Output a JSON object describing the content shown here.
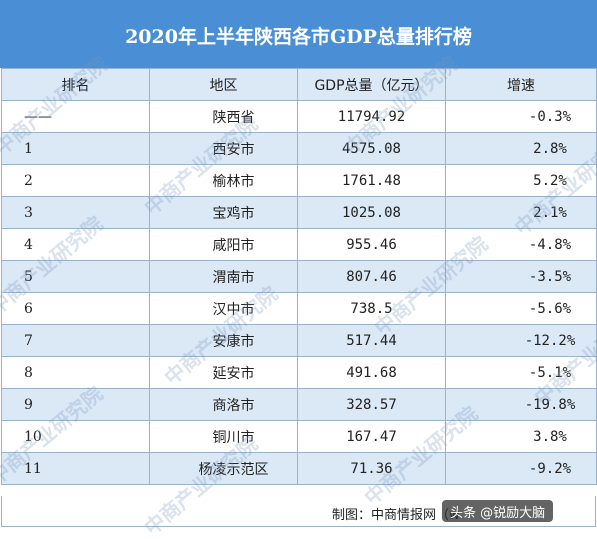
{
  "title": "2020年上半年陕西各市GDP总量排行榜",
  "headers": [
    "排名",
    "地区",
    "GDP总量（亿元）",
    "增速"
  ],
  "rows": [
    {
      "rank": "——",
      "region": "陕西省",
      "gdp": "11794.92",
      "growth": "-0.3%"
    },
    {
      "rank": "1",
      "region": "西安市",
      "gdp": "4575.08",
      "growth": "2.8%"
    },
    {
      "rank": "2",
      "region": "榆林市",
      "gdp": "1761.48",
      "growth": "5.2%"
    },
    {
      "rank": "3",
      "region": "宝鸡市",
      "gdp": "1025.08",
      "growth": "2.1%"
    },
    {
      "rank": "4",
      "region": "咸阳市",
      "gdp": "955.46",
      "growth": "-4.8%"
    },
    {
      "rank": "5",
      "region": "渭南市",
      "gdp": "807.46",
      "growth": "-3.5%"
    },
    {
      "rank": "6",
      "region": "汉中市",
      "gdp": "738.5",
      "growth": "-5.6%"
    },
    {
      "rank": "7",
      "region": "安康市",
      "gdp": "517.44",
      "growth": "-12.2%"
    },
    {
      "rank": "8",
      "region": "延安市",
      "gdp": "491.68",
      "growth": "-5.1%"
    },
    {
      "rank": "9",
      "region": "商洛市",
      "gdp": "328.57",
      "growth": "-19.8%"
    },
    {
      "rank": "10",
      "region": "铜川市",
      "gdp": "167.47",
      "growth": "3.8%"
    },
    {
      "rank": "11",
      "region": "杨凌示范区",
      "gdp": "71.36",
      "growth": "-9.2%"
    }
  ],
  "footer": {
    "source": "制图：中商情报网（w",
    "stamp": "头条 @锐励大脑"
  },
  "watermark_text": "中商产业研究院",
  "colors": {
    "title_bg": "#4a8fd6",
    "row_alt": "#dbe8f6",
    "border": "#9ab3cc"
  }
}
